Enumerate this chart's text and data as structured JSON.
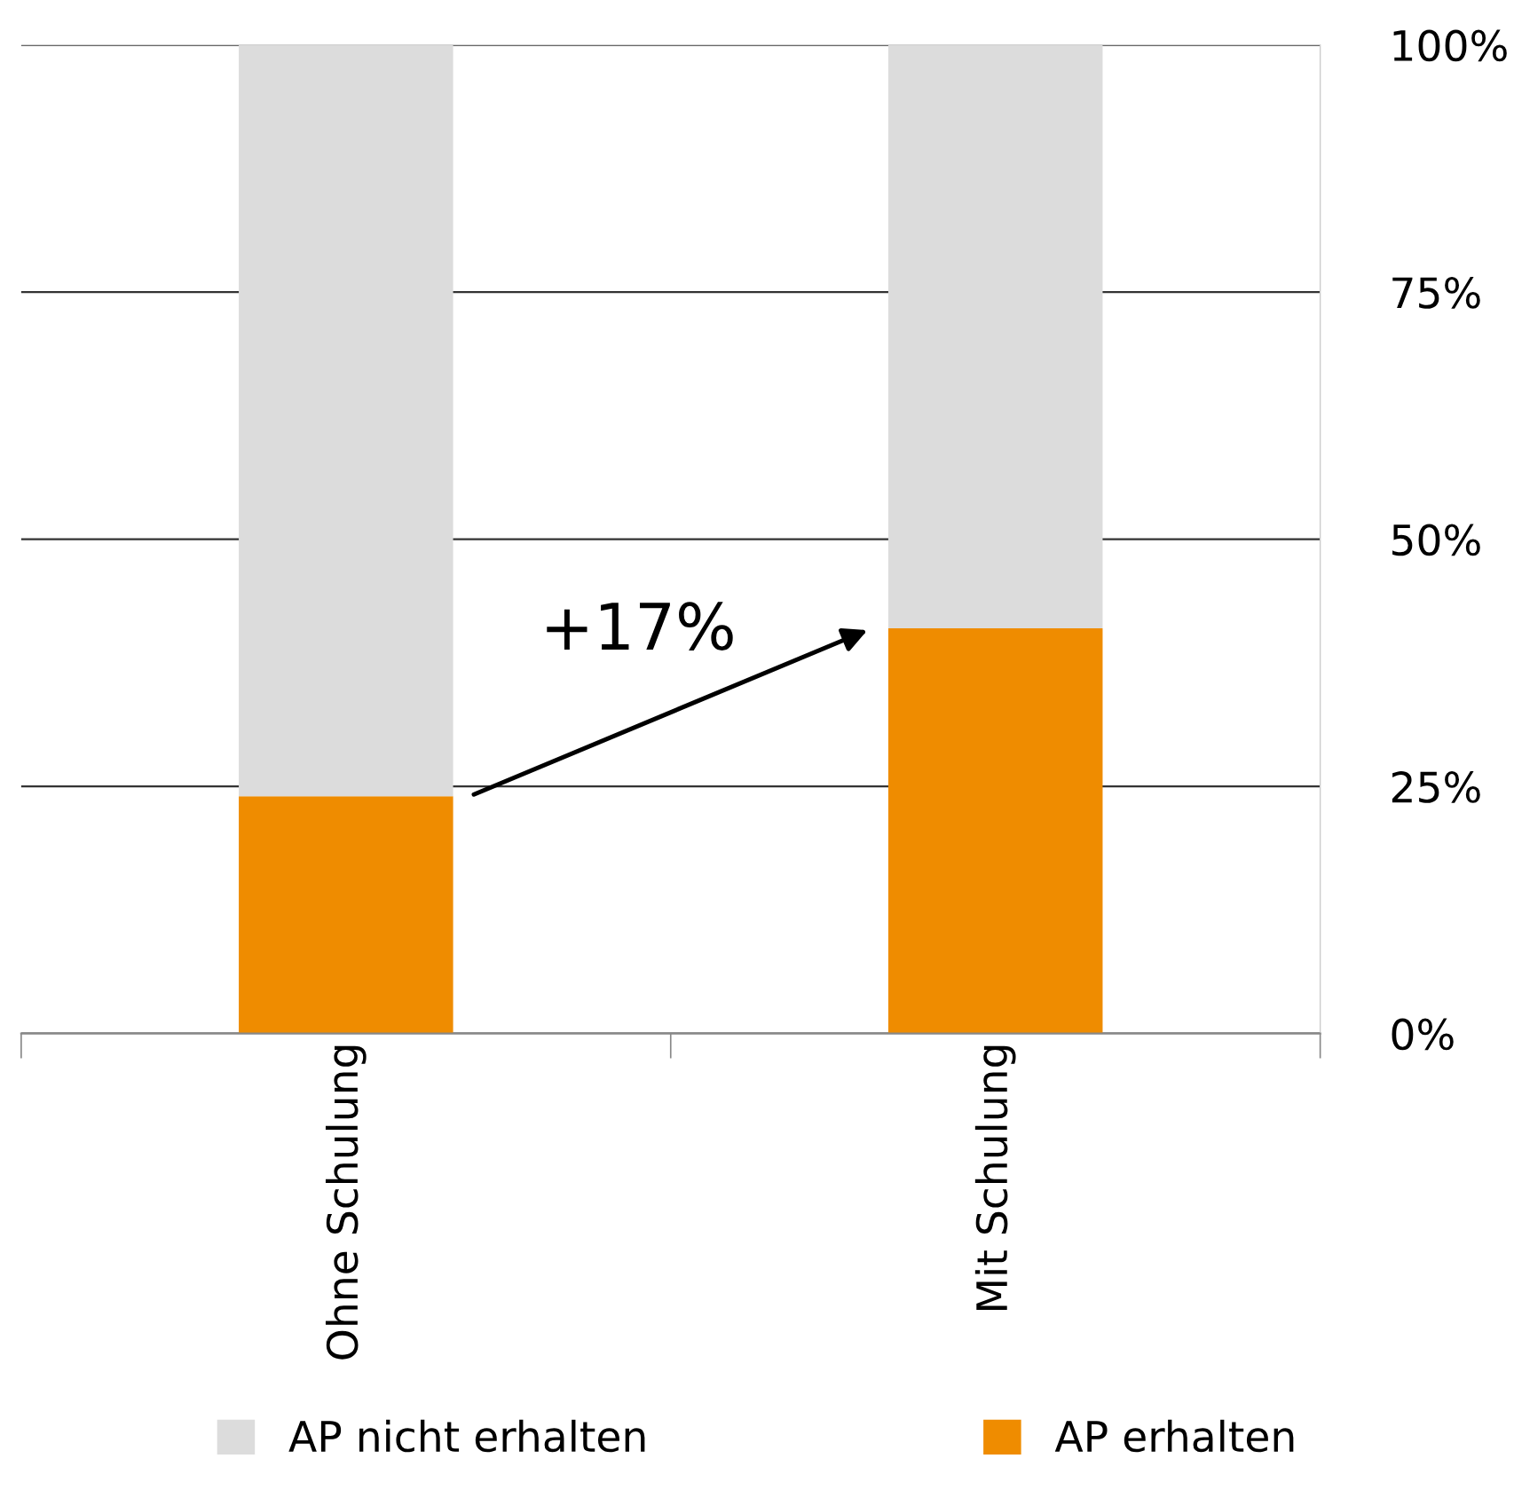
{
  "chart_data": {
    "type": "bar",
    "stacked": true,
    "categories": [
      "Ohne Schulung",
      "Mit Schulung"
    ],
    "series": [
      {
        "name": "AP erhalten",
        "color": "#ef8c00",
        "values": [
          24,
          41
        ]
      },
      {
        "name": "AP nicht erhalten",
        "color": "#dcdcdc",
        "values": [
          76,
          59
        ]
      }
    ],
    "ylim": [
      0,
      100
    ],
    "yticks": [
      {
        "value": 0,
        "label": "0%"
      },
      {
        "value": 25,
        "label": "25%"
      },
      {
        "value": 50,
        "label": "50%"
      },
      {
        "value": 75,
        "label": "75%"
      },
      {
        "value": 100,
        "label": "100%"
      }
    ],
    "grid": "y",
    "legend": "bottom",
    "annotations": [
      "+17%"
    ]
  }
}
